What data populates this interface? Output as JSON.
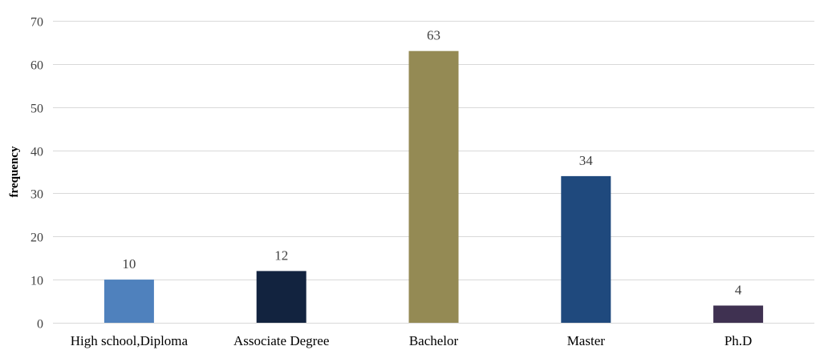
{
  "chart_data": {
    "type": "bar",
    "title": "",
    "xlabel": "",
    "ylabel": "frequency",
    "categories": [
      "High school,Diploma",
      "Associate Degree",
      "Bachelor",
      "Master",
      "Ph.D"
    ],
    "values": [
      10,
      12,
      63,
      34,
      4
    ],
    "data_labels": [
      "10",
      "12",
      "63",
      "34",
      "4"
    ],
    "colors": [
      "#4F81BD",
      "#12233F",
      "#948A54",
      "#1F497D",
      "#3F3151"
    ],
    "ylim": [
      0,
      70
    ],
    "yticks": [
      0,
      10,
      20,
      30,
      40,
      50,
      60,
      70
    ],
    "ytick_labels": [
      "0",
      "10",
      "20",
      "30",
      "40",
      "50",
      "60",
      "70"
    ],
    "grid": true,
    "legend": false
  }
}
